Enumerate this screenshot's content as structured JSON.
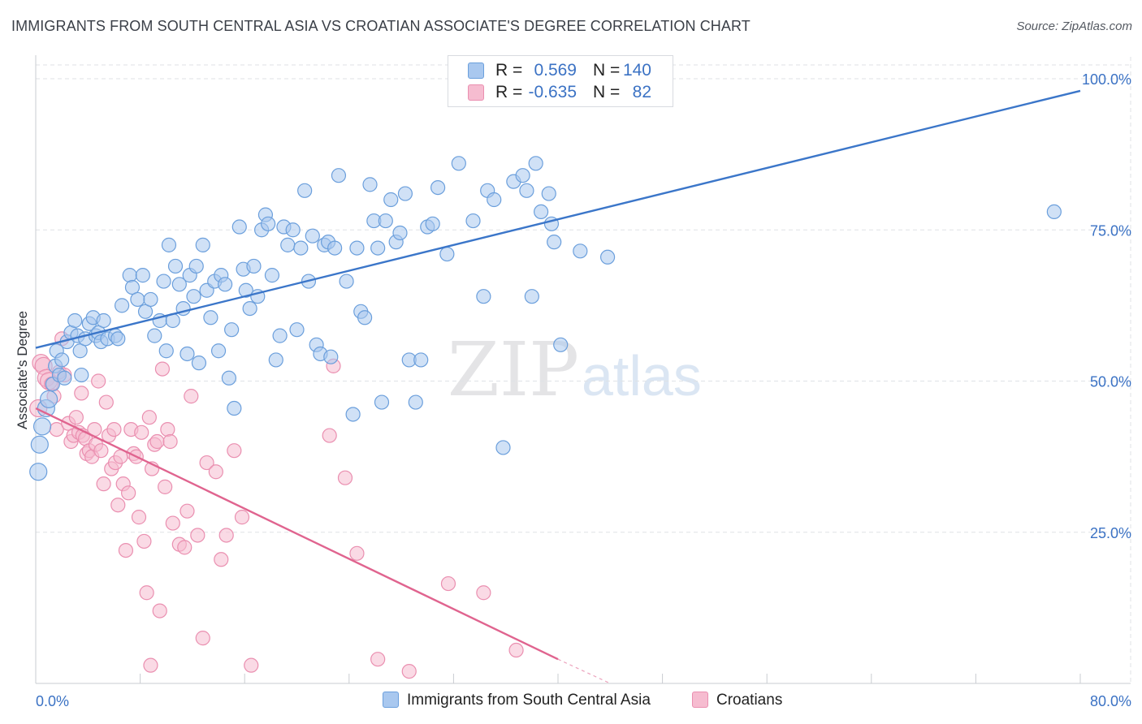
{
  "title": "IMMIGRANTS FROM SOUTH CENTRAL ASIA VS CROATIAN ASSOCIATE'S DEGREE CORRELATION CHART",
  "source": "Source: ZipAtlas.com",
  "watermark": {
    "zip": "ZIP",
    "atlas": "atlas"
  },
  "colors": {
    "blue_fill": "#a9c8ef",
    "blue_stroke": "#6b9fdc",
    "blue_line": "#3b76c9",
    "pink_fill": "#f6bcd0",
    "pink_stroke": "#ea8fb0",
    "pink_line": "#e0648f",
    "axis_label": "#3b72c4",
    "grid": "#dfe2e6"
  },
  "legend_top": {
    "blue": {
      "r_label": "R =",
      "r_value": "0.569",
      "n_label": "N =",
      "n_value": "140"
    },
    "pink": {
      "r_label": "R =",
      "r_value": "-0.635",
      "n_label": "N =",
      "n_value": "82"
    }
  },
  "legend_bottom": {
    "blue": "Immigrants from South Central Asia",
    "pink": "Croatians"
  },
  "chart_data": {
    "type": "scatter",
    "title": "IMMIGRANTS FROM SOUTH CENTRAL ASIA VS CROATIAN ASSOCIATE'S DEGREE CORRELATION CHART",
    "xlabel": "",
    "ylabel": "Associate's Degree",
    "xlim": [
      0,
      80
    ],
    "ylim": [
      0,
      100
    ],
    "x_tick_labels": [
      "0.0%",
      "80.0%"
    ],
    "y_tick_labels": [
      "25.0%",
      "50.0%",
      "75.0%",
      "100.0%"
    ],
    "y_ticks": [
      25,
      50,
      75,
      100
    ],
    "grid": true,
    "legend_placement": "top-center",
    "series": [
      {
        "name": "Immigrants from South Central Asia",
        "r": 0.569,
        "n": 140,
        "trend": {
          "x": [
            0,
            80
          ],
          "y": [
            55.5,
            98.0
          ],
          "style": "solid"
        },
        "points": [
          [
            0.2,
            35
          ],
          [
            0.3,
            39.5
          ],
          [
            0.5,
            42.5
          ],
          [
            0.8,
            45.5
          ],
          [
            1.0,
            47
          ],
          [
            1.3,
            49.5
          ],
          [
            1.5,
            52.5
          ],
          [
            1.6,
            55
          ],
          [
            1.8,
            51
          ],
          [
            2.0,
            53.5
          ],
          [
            2.2,
            50.5
          ],
          [
            2.4,
            56.5
          ],
          [
            2.7,
            58
          ],
          [
            3.0,
            60
          ],
          [
            3.2,
            57.5
          ],
          [
            3.4,
            55
          ],
          [
            3.5,
            51
          ],
          [
            3.8,
            57
          ],
          [
            4.1,
            59.5
          ],
          [
            4.4,
            60.5
          ],
          [
            4.6,
            57.5
          ],
          [
            4.8,
            58
          ],
          [
            5.0,
            56.5
          ],
          [
            5.2,
            60
          ],
          [
            5.5,
            57
          ],
          [
            6.1,
            57.5
          ],
          [
            6.3,
            57
          ],
          [
            6.6,
            62.5
          ],
          [
            7.2,
            67.5
          ],
          [
            7.4,
            65.5
          ],
          [
            7.8,
            63.5
          ],
          [
            8.2,
            67.5
          ],
          [
            8.4,
            61.5
          ],
          [
            8.8,
            63.5
          ],
          [
            9.1,
            57.5
          ],
          [
            9.5,
            60
          ],
          [
            9.8,
            66.5
          ],
          [
            10.0,
            55
          ],
          [
            10.2,
            72.5
          ],
          [
            10.5,
            60
          ],
          [
            10.7,
            69
          ],
          [
            11.0,
            66
          ],
          [
            11.3,
            62
          ],
          [
            11.6,
            54.5
          ],
          [
            11.8,
            67.5
          ],
          [
            12.1,
            64
          ],
          [
            12.3,
            69
          ],
          [
            12.5,
            53
          ],
          [
            12.8,
            72.5
          ],
          [
            13.1,
            65
          ],
          [
            13.4,
            60.5
          ],
          [
            13.7,
            66.5
          ],
          [
            14.0,
            55
          ],
          [
            14.2,
            67.5
          ],
          [
            14.5,
            66
          ],
          [
            14.8,
            50.5
          ],
          [
            15.0,
            58.5
          ],
          [
            15.2,
            45.5
          ],
          [
            15.6,
            75.5
          ],
          [
            15.9,
            68.5
          ],
          [
            16.1,
            65
          ],
          [
            16.4,
            62
          ],
          [
            16.7,
            69
          ],
          [
            17.0,
            64
          ],
          [
            17.3,
            75
          ],
          [
            17.6,
            77.5
          ],
          [
            17.8,
            76
          ],
          [
            18.1,
            67.5
          ],
          [
            18.4,
            53.5
          ],
          [
            18.7,
            57.5
          ],
          [
            19.0,
            75.5
          ],
          [
            19.3,
            72.5
          ],
          [
            19.7,
            75
          ],
          [
            20.0,
            58.5
          ],
          [
            20.3,
            72
          ],
          [
            20.6,
            81.5
          ],
          [
            20.9,
            66.5
          ],
          [
            21.2,
            74
          ],
          [
            21.5,
            56
          ],
          [
            21.8,
            54.5
          ],
          [
            22.1,
            72.5
          ],
          [
            22.4,
            73
          ],
          [
            22.6,
            54
          ],
          [
            22.9,
            72
          ],
          [
            23.2,
            84
          ],
          [
            23.8,
            66.5
          ],
          [
            24.3,
            44.5
          ],
          [
            24.6,
            72
          ],
          [
            24.9,
            61.5
          ],
          [
            25.2,
            60.5
          ],
          [
            25.6,
            82.5
          ],
          [
            25.9,
            76.5
          ],
          [
            26.2,
            72
          ],
          [
            26.5,
            46.5
          ],
          [
            26.8,
            76.5
          ],
          [
            27.2,
            80
          ],
          [
            27.6,
            73
          ],
          [
            27.9,
            74.5
          ],
          [
            28.3,
            81
          ],
          [
            28.6,
            53.5
          ],
          [
            29.1,
            46.5
          ],
          [
            29.5,
            53.5
          ],
          [
            30.0,
            75.5
          ],
          [
            30.4,
            76
          ],
          [
            30.8,
            82
          ],
          [
            31.5,
            71
          ],
          [
            32.4,
            86
          ],
          [
            33.5,
            76.5
          ],
          [
            34.3,
            64
          ],
          [
            34.6,
            81.5
          ],
          [
            35.1,
            80
          ],
          [
            35.8,
            39
          ],
          [
            36.6,
            83
          ],
          [
            37.3,
            84
          ],
          [
            37.6,
            81.5
          ],
          [
            38.0,
            64
          ],
          [
            38.3,
            86
          ],
          [
            38.7,
            78
          ],
          [
            39.3,
            81
          ],
          [
            39.5,
            76
          ],
          [
            39.7,
            73
          ],
          [
            40.2,
            56
          ],
          [
            41.7,
            71.5
          ],
          [
            43.8,
            70.5
          ],
          [
            78.0,
            78
          ]
        ]
      },
      {
        "name": "Croatians",
        "r": -0.635,
        "n": 82,
        "trend": {
          "x": [
            0,
            40
          ],
          "y": [
            45.5,
            4
          ],
          "style": "solid",
          "dashed_extension": {
            "x": [
              40,
              44
            ],
            "y": [
              4,
              0
            ]
          }
        },
        "points": [
          [
            0.2,
            45.5
          ],
          [
            0.4,
            53
          ],
          [
            0.6,
            52.5
          ],
          [
            0.8,
            50.5
          ],
          [
            1.0,
            50
          ],
          [
            1.2,
            49.5
          ],
          [
            1.4,
            47.5
          ],
          [
            1.6,
            42
          ],
          [
            1.8,
            51.5
          ],
          [
            2.0,
            57
          ],
          [
            2.2,
            51
          ],
          [
            2.5,
            43
          ],
          [
            2.7,
            40
          ],
          [
            2.9,
            41
          ],
          [
            3.1,
            44
          ],
          [
            3.3,
            41.5
          ],
          [
            3.5,
            48
          ],
          [
            3.6,
            41
          ],
          [
            3.8,
            40.5
          ],
          [
            3.9,
            38
          ],
          [
            4.1,
            38.5
          ],
          [
            4.3,
            37.5
          ],
          [
            4.5,
            42
          ],
          [
            4.6,
            39.5
          ],
          [
            4.8,
            50
          ],
          [
            5.0,
            38.5
          ],
          [
            5.2,
            33
          ],
          [
            5.4,
            46.5
          ],
          [
            5.6,
            41
          ],
          [
            5.8,
            35.5
          ],
          [
            6.0,
            42
          ],
          [
            6.1,
            36.5
          ],
          [
            6.3,
            29.5
          ],
          [
            6.5,
            37.5
          ],
          [
            6.7,
            33
          ],
          [
            6.9,
            22
          ],
          [
            7.1,
            31.5
          ],
          [
            7.3,
            42
          ],
          [
            7.5,
            38
          ],
          [
            7.7,
            37.5
          ],
          [
            7.9,
            27.5
          ],
          [
            8.1,
            41.5
          ],
          [
            8.3,
            23.5
          ],
          [
            8.5,
            15
          ],
          [
            8.7,
            44
          ],
          [
            8.9,
            35.5
          ],
          [
            9.1,
            39.5
          ],
          [
            9.3,
            40
          ],
          [
            9.5,
            12
          ],
          [
            9.7,
            52
          ],
          [
            9.9,
            32.5
          ],
          [
            10.1,
            42
          ],
          [
            10.3,
            40
          ],
          [
            10.5,
            26.5
          ],
          [
            11.0,
            23
          ],
          [
            11.4,
            22.5
          ],
          [
            11.6,
            28.5
          ],
          [
            11.9,
            47.5
          ],
          [
            12.4,
            24.5
          ],
          [
            12.8,
            7.5
          ],
          [
            13.1,
            36.5
          ],
          [
            13.8,
            35
          ],
          [
            14.2,
            20.5
          ],
          [
            14.6,
            24.5
          ],
          [
            15.2,
            38.5
          ],
          [
            15.8,
            27.5
          ],
          [
            16.5,
            3
          ],
          [
            22.5,
            41
          ],
          [
            22.8,
            52.5
          ],
          [
            23.7,
            34
          ],
          [
            24.6,
            21.5
          ],
          [
            26.2,
            4
          ],
          [
            28.6,
            2
          ],
          [
            31.6,
            16.5
          ],
          [
            34.3,
            15
          ],
          [
            36.8,
            5.5
          ],
          [
            8.8,
            3
          ]
        ]
      }
    ]
  }
}
